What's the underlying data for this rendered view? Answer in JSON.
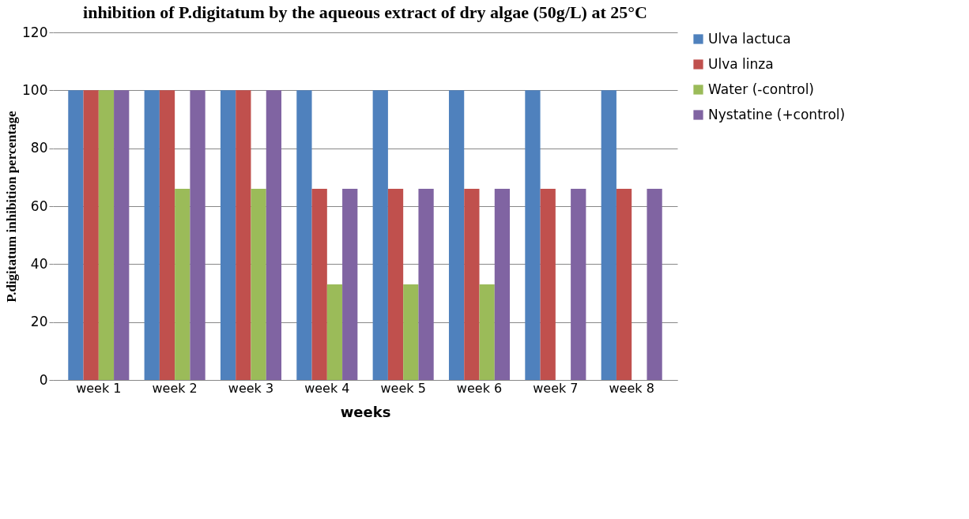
{
  "chart_data": {
    "type": "bar",
    "title": "inhibition of P.digitatum by the aqueous extract of dry algae (50g/L) at 25°C",
    "xlabel": "weeks",
    "ylabel": "P.digitatum inhibition percentage",
    "categories": [
      "week 1",
      "week 2",
      "week 3",
      "week 4",
      "week 5",
      "week 6",
      "week 7",
      "week 8"
    ],
    "series": [
      {
        "name": "Ulva lactuca",
        "color": "#4f81bd",
        "values": [
          100,
          100,
          100,
          100,
          100,
          100,
          100,
          100
        ]
      },
      {
        "name": "Ulva linza",
        "color": "#c0504d",
        "values": [
          100,
          100,
          100,
          66,
          66,
          66,
          66,
          66
        ]
      },
      {
        "name": "Water (-control)",
        "color": "#9bbb59",
        "values": [
          100,
          66,
          66,
          33,
          33,
          33,
          0,
          0
        ]
      },
      {
        "name": "Nystatine (+control)",
        "color": "#8064a2",
        "values": [
          100,
          100,
          100,
          66,
          66,
          66,
          66,
          66
        ]
      }
    ],
    "ylim": [
      0,
      120
    ],
    "yticks": [
      0,
      20,
      40,
      60,
      80,
      100,
      120
    ],
    "grid": "y",
    "legend": "right"
  }
}
